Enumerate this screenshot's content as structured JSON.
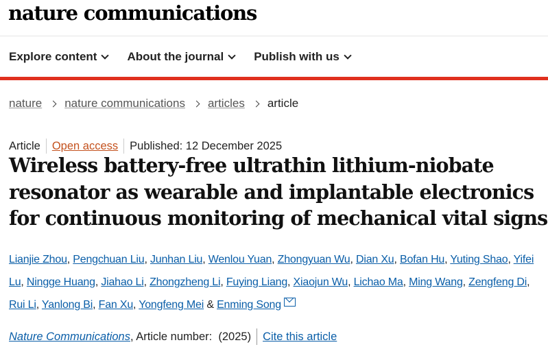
{
  "site": {
    "logo": "nature communications"
  },
  "nav": [
    {
      "label": "Explore content"
    },
    {
      "label": "About the journal"
    },
    {
      "label": "Publish with us"
    }
  ],
  "breadcrumb": [
    {
      "label": "nature"
    },
    {
      "label": "nature communications"
    },
    {
      "label": "articles"
    },
    {
      "label": "article"
    }
  ],
  "meta": {
    "type": "Article",
    "access": "Open access",
    "published": "Published: 12 December 2025"
  },
  "title": "Wireless battery-free ultrathin lithium-niobate resonator as wearable and implantable electronics for continuous monitoring of mechanical vital signs",
  "authors": [
    "Lianjie Zhou",
    "Pengchuan Liu",
    "Junhan Liu",
    "Wenlou Yuan",
    "Zhongyuan Wu",
    "Dian Xu",
    "Bofan Hu",
    "Yuting Shao",
    "Yifei Lu",
    "Ningge Huang",
    "Jiahao Li",
    "Zhongzheng Li",
    "Fuying Liang",
    "Xiaojun Wu",
    "Lichao Ma",
    "Ming Wang",
    "Zengfeng Di",
    "Rui Li",
    "Yanlong Bi",
    "Fan Xu",
    "Yongfeng Mei",
    "Enming Song"
  ],
  "citation": {
    "journal": "Nature Communications",
    "article_number": ", Article number:  (2025)",
    "cite_label": "Cite this article"
  },
  "colors": {
    "accent": "#e0301e",
    "link": "#0a5ea8",
    "open_access": "#c4521e"
  }
}
